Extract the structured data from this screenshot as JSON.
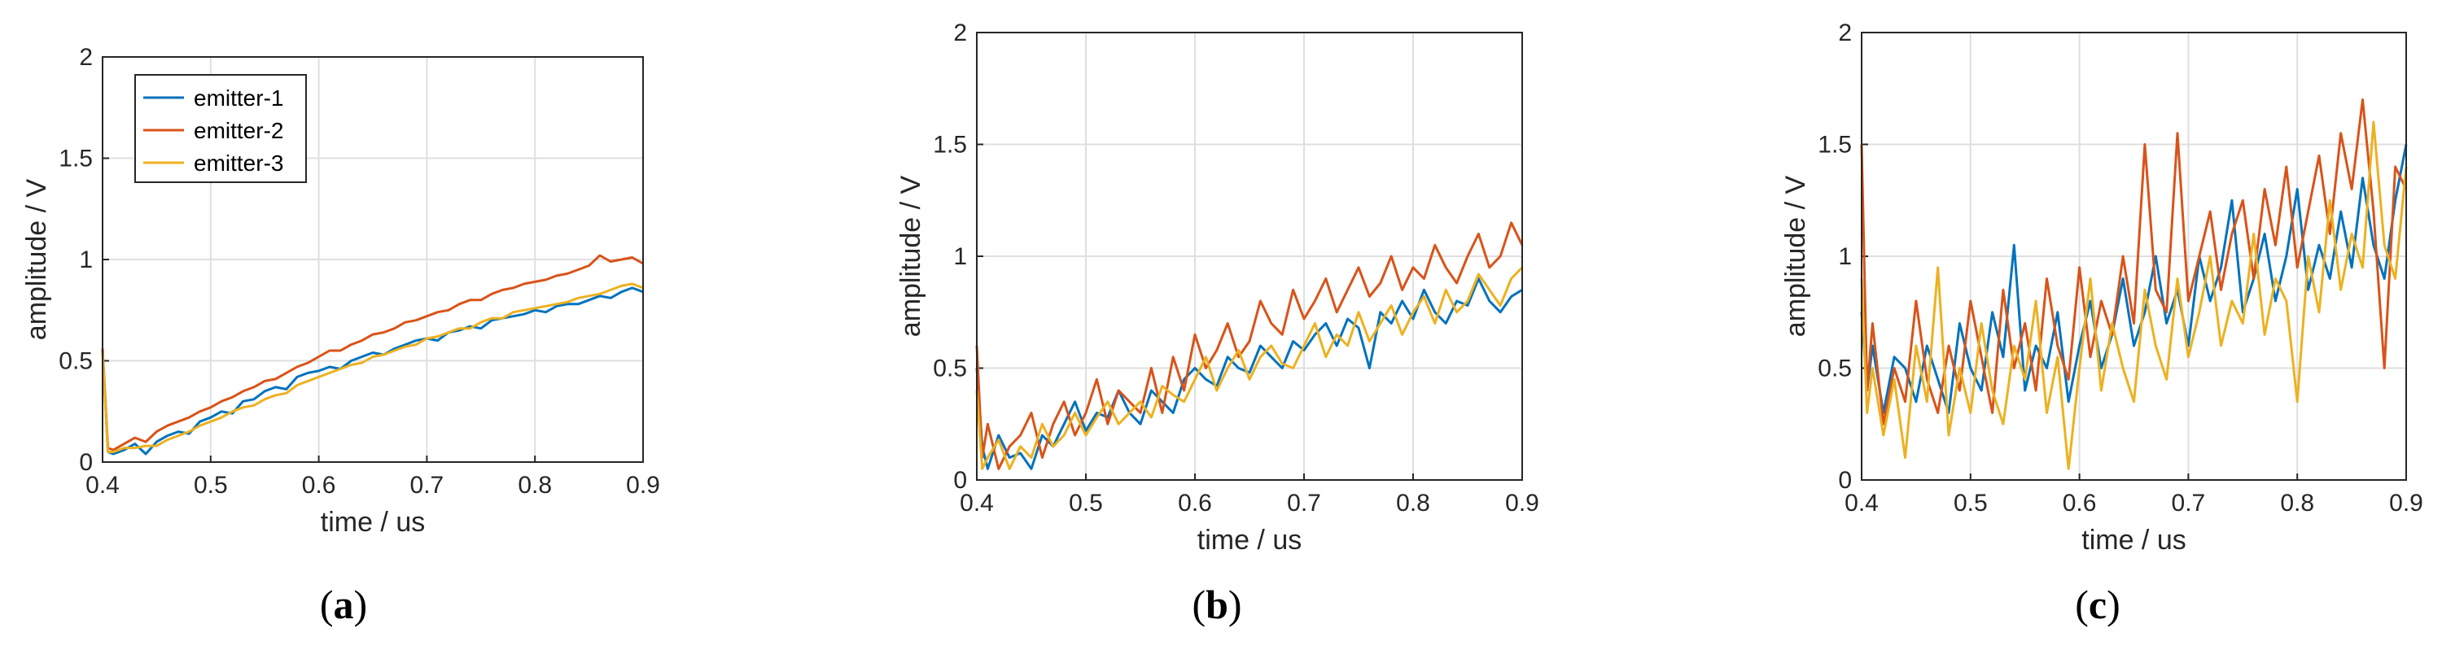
{
  "series_colors": [
    "#0072BD",
    "#D95319",
    "#EDB120"
  ],
  "chart_data": [
    {
      "type": "line",
      "caption": "a",
      "xlabel": "time / us",
      "ylabel": "amplitude / V",
      "xlim": [
        0.4,
        0.9
      ],
      "ylim": [
        0,
        2
      ],
      "xticks": [
        "0.4",
        "0.5",
        "0.6",
        "0.7",
        "0.8",
        "0.9"
      ],
      "yticks": [
        "0",
        "0.5",
        "1",
        "1.5",
        "2"
      ],
      "grid": true,
      "legend": {
        "position": "top-left",
        "entries": [
          "emitter-1",
          "emitter-2",
          "emitter-3"
        ]
      },
      "x": [
        0.4,
        0.405,
        0.41,
        0.42,
        0.43,
        0.44,
        0.45,
        0.46,
        0.47,
        0.48,
        0.49,
        0.5,
        0.51,
        0.52,
        0.53,
        0.54,
        0.55,
        0.56,
        0.57,
        0.58,
        0.59,
        0.6,
        0.61,
        0.62,
        0.63,
        0.64,
        0.65,
        0.66,
        0.67,
        0.68,
        0.69,
        0.7,
        0.71,
        0.72,
        0.73,
        0.74,
        0.75,
        0.76,
        0.77,
        0.78,
        0.79,
        0.8,
        0.81,
        0.82,
        0.83,
        0.84,
        0.85,
        0.86,
        0.87,
        0.88,
        0.89,
        0.9
      ],
      "series": [
        {
          "name": "emitter-1",
          "values": [
            0.55,
            0.05,
            0.04,
            0.06,
            0.09,
            0.04,
            0.1,
            0.13,
            0.15,
            0.14,
            0.2,
            0.22,
            0.25,
            0.24,
            0.3,
            0.31,
            0.35,
            0.37,
            0.36,
            0.42,
            0.44,
            0.45,
            0.47,
            0.46,
            0.5,
            0.52,
            0.54,
            0.53,
            0.56,
            0.58,
            0.6,
            0.61,
            0.6,
            0.64,
            0.65,
            0.67,
            0.66,
            0.7,
            0.71,
            0.72,
            0.73,
            0.75,
            0.74,
            0.77,
            0.78,
            0.78,
            0.8,
            0.82,
            0.81,
            0.84,
            0.86,
            0.84
          ]
        },
        {
          "name": "emitter-2",
          "values": [
            0.56,
            0.07,
            0.06,
            0.09,
            0.12,
            0.1,
            0.15,
            0.18,
            0.2,
            0.22,
            0.25,
            0.27,
            0.3,
            0.32,
            0.35,
            0.37,
            0.4,
            0.41,
            0.44,
            0.47,
            0.49,
            0.52,
            0.55,
            0.55,
            0.58,
            0.6,
            0.63,
            0.64,
            0.66,
            0.69,
            0.7,
            0.72,
            0.74,
            0.75,
            0.78,
            0.8,
            0.8,
            0.83,
            0.85,
            0.86,
            0.88,
            0.89,
            0.9,
            0.92,
            0.93,
            0.95,
            0.97,
            1.02,
            0.99,
            1.0,
            1.01,
            0.98
          ]
        },
        {
          "name": "emitter-3",
          "values": [
            0.54,
            0.05,
            0.05,
            0.07,
            0.07,
            0.08,
            0.08,
            0.11,
            0.13,
            0.15,
            0.18,
            0.2,
            0.22,
            0.25,
            0.27,
            0.28,
            0.31,
            0.33,
            0.34,
            0.38,
            0.4,
            0.42,
            0.44,
            0.46,
            0.48,
            0.49,
            0.52,
            0.53,
            0.55,
            0.57,
            0.58,
            0.61,
            0.62,
            0.64,
            0.66,
            0.66,
            0.69,
            0.71,
            0.71,
            0.74,
            0.75,
            0.76,
            0.77,
            0.78,
            0.79,
            0.81,
            0.82,
            0.83,
            0.85,
            0.87,
            0.88,
            0.86
          ]
        }
      ]
    },
    {
      "type": "line",
      "caption": "b",
      "xlabel": "time / us",
      "ylabel": "amplitude / V",
      "xlim": [
        0.4,
        0.9
      ],
      "ylim": [
        0,
        2
      ],
      "xticks": [
        "0.4",
        "0.5",
        "0.6",
        "0.7",
        "0.8",
        "0.9"
      ],
      "yticks": [
        "0",
        "0.5",
        "1",
        "1.5",
        "2"
      ],
      "grid": true,
      "x": [
        0.4,
        0.405,
        0.41,
        0.42,
        0.43,
        0.44,
        0.45,
        0.46,
        0.47,
        0.48,
        0.49,
        0.5,
        0.51,
        0.52,
        0.53,
        0.54,
        0.55,
        0.56,
        0.57,
        0.58,
        0.59,
        0.6,
        0.61,
        0.62,
        0.63,
        0.64,
        0.65,
        0.66,
        0.67,
        0.68,
        0.69,
        0.7,
        0.71,
        0.72,
        0.73,
        0.74,
        0.75,
        0.76,
        0.77,
        0.78,
        0.79,
        0.8,
        0.81,
        0.82,
        0.83,
        0.84,
        0.85,
        0.86,
        0.87,
        0.88,
        0.89,
        0.9
      ],
      "series": [
        {
          "name": "emitter-1",
          "values": [
            0.5,
            0.15,
            0.05,
            0.2,
            0.1,
            0.12,
            0.05,
            0.2,
            0.15,
            0.25,
            0.35,
            0.22,
            0.3,
            0.28,
            0.4,
            0.3,
            0.25,
            0.4,
            0.35,
            0.3,
            0.45,
            0.5,
            0.45,
            0.42,
            0.55,
            0.5,
            0.48,
            0.6,
            0.55,
            0.5,
            0.62,
            0.58,
            0.65,
            0.7,
            0.6,
            0.72,
            0.68,
            0.5,
            0.75,
            0.7,
            0.8,
            0.72,
            0.85,
            0.75,
            0.7,
            0.8,
            0.78,
            0.9,
            0.8,
            0.75,
            0.82,
            0.85
          ]
        },
        {
          "name": "emitter-2",
          "values": [
            0.6,
            0.1,
            0.25,
            0.05,
            0.15,
            0.2,
            0.3,
            0.1,
            0.25,
            0.35,
            0.2,
            0.3,
            0.45,
            0.25,
            0.4,
            0.35,
            0.3,
            0.5,
            0.3,
            0.55,
            0.4,
            0.65,
            0.5,
            0.58,
            0.7,
            0.55,
            0.62,
            0.8,
            0.7,
            0.65,
            0.85,
            0.72,
            0.8,
            0.9,
            0.75,
            0.85,
            0.95,
            0.82,
            0.88,
            1.0,
            0.85,
            0.95,
            0.9,
            1.05,
            0.95,
            0.88,
            1.0,
            1.1,
            0.95,
            1.0,
            1.15,
            1.05
          ]
        },
        {
          "name": "emitter-3",
          "values": [
            0.4,
            0.05,
            0.1,
            0.18,
            0.05,
            0.15,
            0.1,
            0.25,
            0.15,
            0.2,
            0.3,
            0.2,
            0.28,
            0.35,
            0.25,
            0.3,
            0.35,
            0.28,
            0.42,
            0.38,
            0.35,
            0.45,
            0.55,
            0.4,
            0.5,
            0.58,
            0.45,
            0.55,
            0.6,
            0.52,
            0.5,
            0.6,
            0.7,
            0.55,
            0.65,
            0.6,
            0.75,
            0.62,
            0.7,
            0.78,
            0.65,
            0.75,
            0.82,
            0.7,
            0.85,
            0.75,
            0.8,
            0.92,
            0.85,
            0.78,
            0.9,
            0.95
          ]
        }
      ]
    },
    {
      "type": "line",
      "caption": "c",
      "xlabel": "time / us",
      "ylabel": "amplitude / V",
      "xlim": [
        0.4,
        0.9
      ],
      "ylim": [
        0,
        2
      ],
      "xticks": [
        "0.4",
        "0.5",
        "0.6",
        "0.7",
        "0.8",
        "0.9"
      ],
      "yticks": [
        "0",
        "0.5",
        "1",
        "1.5",
        "2"
      ],
      "grid": true,
      "x": [
        0.4,
        0.405,
        0.41,
        0.42,
        0.43,
        0.44,
        0.45,
        0.46,
        0.47,
        0.48,
        0.49,
        0.5,
        0.51,
        0.52,
        0.53,
        0.54,
        0.55,
        0.56,
        0.57,
        0.58,
        0.59,
        0.6,
        0.61,
        0.62,
        0.63,
        0.64,
        0.65,
        0.66,
        0.67,
        0.68,
        0.69,
        0.7,
        0.71,
        0.72,
        0.73,
        0.74,
        0.75,
        0.76,
        0.77,
        0.78,
        0.79,
        0.8,
        0.81,
        0.82,
        0.83,
        0.84,
        0.85,
        0.86,
        0.87,
        0.88,
        0.89,
        0.9
      ],
      "series": [
        {
          "name": "emitter-1",
          "values": [
            0.75,
            0.4,
            0.6,
            0.3,
            0.55,
            0.5,
            0.35,
            0.6,
            0.45,
            0.3,
            0.7,
            0.5,
            0.4,
            0.75,
            0.55,
            1.05,
            0.4,
            0.6,
            0.5,
            0.75,
            0.35,
            0.6,
            0.8,
            0.5,
            0.65,
            0.9,
            0.6,
            0.75,
            1.0,
            0.7,
            0.85,
            0.6,
            1.0,
            0.8,
            0.95,
            1.25,
            0.75,
            0.9,
            1.1,
            0.8,
            1.0,
            1.3,
            0.85,
            1.05,
            0.9,
            1.2,
            0.95,
            1.35,
            1.05,
            0.9,
            1.25,
            1.5
          ]
        },
        {
          "name": "emitter-2",
          "values": [
            1.5,
            0.4,
            0.7,
            0.25,
            0.5,
            0.35,
            0.8,
            0.45,
            0.3,
            0.6,
            0.4,
            0.8,
            0.55,
            0.3,
            0.85,
            0.5,
            0.7,
            0.4,
            0.9,
            0.6,
            0.45,
            0.95,
            0.55,
            0.8,
            0.65,
            1.0,
            0.7,
            1.5,
            0.85,
            0.75,
            1.55,
            0.8,
            1.0,
            1.2,
            0.85,
            1.1,
            1.25,
            0.9,
            1.3,
            1.05,
            1.4,
            0.95,
            1.2,
            1.45,
            1.1,
            1.55,
            1.3,
            1.7,
            1.2,
            0.5,
            1.4,
            1.3
          ]
        },
        {
          "name": "emitter-3",
          "values": [
            0.9,
            0.3,
            0.5,
            0.2,
            0.45,
            0.1,
            0.6,
            0.35,
            0.95,
            0.2,
            0.5,
            0.3,
            0.7,
            0.4,
            0.25,
            0.6,
            0.45,
            0.8,
            0.3,
            0.55,
            0.05,
            0.5,
            0.9,
            0.4,
            0.7,
            0.5,
            0.35,
            0.85,
            0.6,
            0.45,
            0.9,
            0.55,
            0.75,
            1.0,
            0.6,
            0.8,
            0.7,
            1.1,
            0.65,
            0.9,
            0.8,
            0.35,
            1.0,
            0.75,
            1.25,
            0.85,
            1.1,
            0.95,
            1.6,
            1.05,
            0.9,
            1.4
          ]
        }
      ]
    }
  ]
}
